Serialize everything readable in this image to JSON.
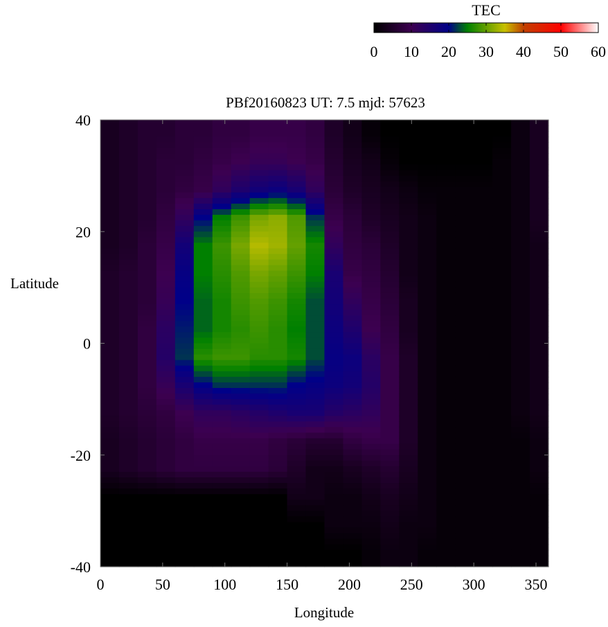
{
  "chart_data": {
    "type": "heatmap",
    "title": "PBf20160823  UT: 7.5  mjd: 57623",
    "xlabel": "Longitude",
    "ylabel": "Latitude",
    "xlim": [
      0,
      360
    ],
    "ylim": [
      -40,
      40
    ],
    "xticks": [
      "0",
      "50",
      "100",
      "150",
      "200",
      "250",
      "300",
      "350"
    ],
    "yticks": [
      "-40",
      "-20",
      "0",
      "20",
      "40"
    ],
    "grid": false,
    "colorbar": {
      "label": "TEC",
      "range": [
        0,
        60
      ],
      "ticks": [
        "0",
        "10",
        "20",
        "30",
        "40",
        "50",
        "60"
      ],
      "placement": "top-right",
      "stops": [
        {
          "value": 0,
          "color": "#000000"
        },
        {
          "value": 10,
          "color": "#3c0050"
        },
        {
          "value": 20,
          "color": "#000088"
        },
        {
          "value": 25,
          "color": "#008000"
        },
        {
          "value": 35,
          "color": "#c8c000"
        },
        {
          "value": 40,
          "color": "#c04000"
        },
        {
          "value": 50,
          "color": "#ff0000"
        },
        {
          "value": 60,
          "color": "#ffffff"
        }
      ]
    },
    "lon_centers": [
      7.5,
      22.5,
      37.5,
      52.5,
      67.5,
      82.5,
      97.5,
      112.5,
      127.5,
      142.5,
      157.5,
      172.5,
      187.5,
      202.5,
      217.5,
      232.5,
      247.5,
      262.5,
      277.5,
      292.5,
      307.5,
      322.5,
      337.5,
      352.5
    ],
    "lat_centers": [
      37.5,
      32.5,
      27.5,
      22.5,
      17.5,
      12.5,
      7.5,
      2.5,
      -2.5,
      -7.5,
      -12.5,
      -17.5,
      -22.5,
      -27.5,
      -32.5,
      -37.5
    ],
    "values": [
      [
        4,
        5,
        6,
        6,
        7,
        7,
        8,
        8,
        9,
        9,
        9,
        8,
        5,
        3,
        1,
        0,
        0,
        0,
        0,
        0,
        0,
        0,
        2,
        4
      ],
      [
        4,
        5,
        6,
        7,
        7,
        8,
        9,
        10,
        11,
        11,
        10,
        9,
        6,
        4,
        3,
        1,
        0,
        0,
        0,
        0,
        0,
        1,
        2,
        4
      ],
      [
        4,
        5,
        6,
        7,
        8,
        9,
        12,
        15,
        17,
        18,
        16,
        12,
        7,
        5,
        4,
        3,
        2,
        1,
        1,
        1,
        1,
        1,
        2,
        4
      ],
      [
        4,
        5,
        6,
        8,
        12,
        20,
        25,
        28,
        31,
        32,
        29,
        22,
        9,
        7,
        5,
        4,
        3,
        2,
        1,
        1,
        1,
        1,
        2,
        4
      ],
      [
        4,
        5,
        7,
        9,
        17,
        25,
        28,
        31,
        34,
        33,
        30,
        26,
        12,
        8,
        7,
        5,
        3,
        2,
        1,
        1,
        1,
        1,
        2,
        3
      ],
      [
        5,
        6,
        7,
        10,
        19,
        25,
        27,
        29,
        31,
        30,
        28,
        25,
        16,
        9,
        8,
        6,
        3,
        2,
        1,
        1,
        1,
        1,
        2,
        3
      ],
      [
        5,
        6,
        7,
        11,
        20,
        24,
        26,
        28,
        29,
        28,
        26,
        23,
        17,
        12,
        9,
        7,
        4,
        2,
        1,
        1,
        1,
        1,
        2,
        3
      ],
      [
        5,
        6,
        8,
        13,
        21,
        24,
        26,
        27,
        28,
        27,
        25,
        23,
        18,
        15,
        10,
        8,
        4,
        2,
        1,
        1,
        1,
        1,
        2,
        3
      ],
      [
        5,
        6,
        8,
        14,
        22,
        27,
        28,
        28,
        27,
        27,
        26,
        23,
        19,
        18,
        13,
        9,
        5,
        2,
        1,
        1,
        1,
        1,
        2,
        3
      ],
      [
        5,
        6,
        8,
        11,
        16,
        20,
        22,
        22,
        22,
        22,
        20,
        19,
        18,
        17,
        14,
        9,
        5,
        2,
        1,
        1,
        1,
        1,
        2,
        3
      ],
      [
        5,
        6,
        7,
        8,
        10,
        12,
        12,
        13,
        14,
        15,
        16,
        16,
        14,
        13,
        12,
        9,
        5,
        2,
        1,
        1,
        1,
        1,
        2,
        3
      ],
      [
        4,
        5,
        6,
        7,
        8,
        9,
        9,
        9,
        9,
        8,
        7,
        6,
        6,
        8,
        9,
        9,
        5,
        2,
        1,
        1,
        1,
        1,
        1,
        2
      ],
      [
        4,
        5,
        6,
        7,
        8,
        8,
        8,
        8,
        8,
        7,
        5,
        3,
        3,
        4,
        5,
        6,
        4,
        2,
        1,
        1,
        1,
        1,
        1,
        2
      ],
      [
        0,
        0,
        0,
        0,
        0,
        0,
        0,
        0,
        0,
        0,
        3,
        3,
        2,
        2,
        3,
        4,
        3,
        2,
        1,
        1,
        1,
        1,
        1,
        1
      ],
      [
        0,
        0,
        0,
        0,
        0,
        0,
        0,
        0,
        0,
        0,
        0,
        0,
        2,
        2,
        2,
        3,
        2,
        2,
        1,
        1,
        1,
        1,
        1,
        1
      ],
      [
        0,
        0,
        0,
        0,
        0,
        0,
        0,
        0,
        0,
        0,
        0,
        0,
        0,
        0,
        1,
        2,
        2,
        1,
        1,
        1,
        1,
        1,
        1,
        1
      ]
    ]
  }
}
